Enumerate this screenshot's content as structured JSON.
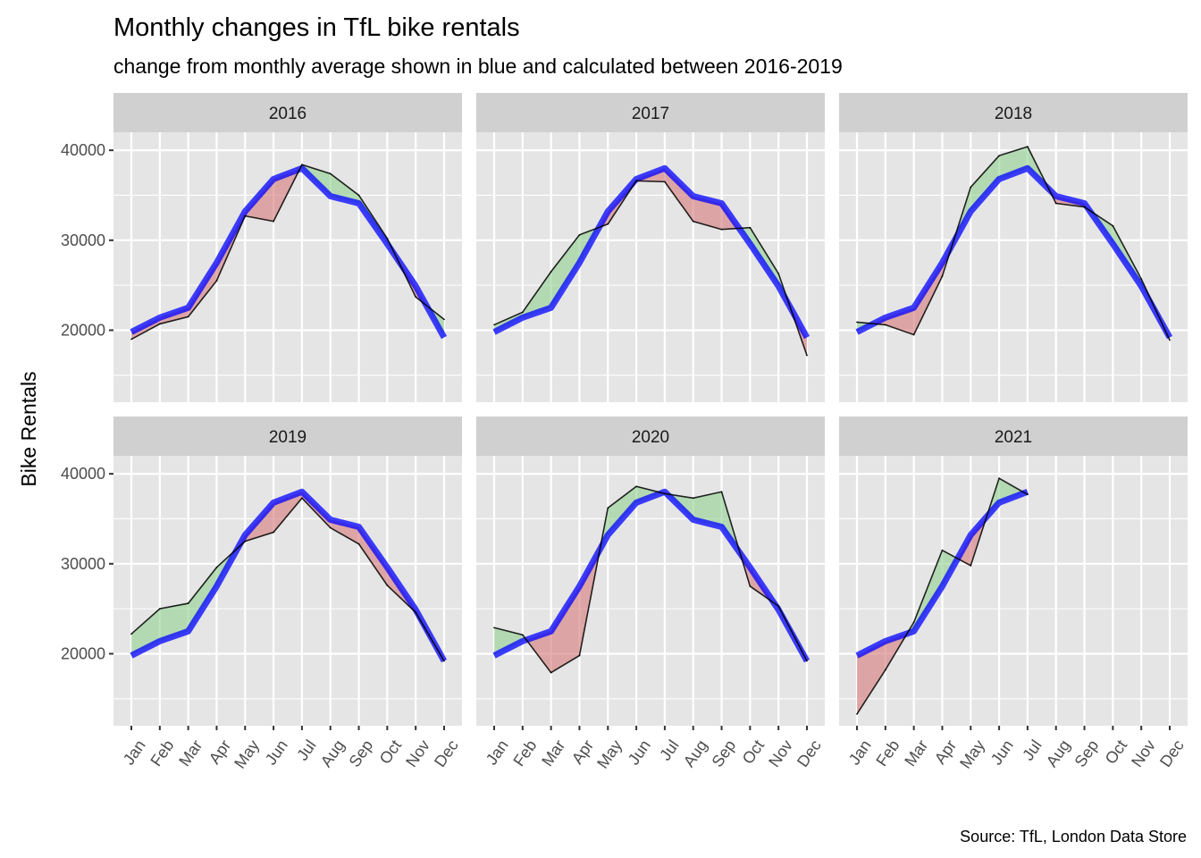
{
  "chart_data": {
    "type": "line",
    "title": "Monthly changes in TfL bike rentals",
    "subtitle": "change from monthly average shown in blue and calculated between 2016-2019",
    "caption": "Source: TfL, London Data Store",
    "xlabel": "",
    "ylabel": "Bike Rentals",
    "ylim": [
      12000,
      42000
    ],
    "yticks": [
      20000,
      30000,
      40000
    ],
    "y_tick_labels": [
      "20000",
      "30000",
      "40000"
    ],
    "categories": [
      "Jan",
      "Feb",
      "Mar",
      "Apr",
      "May",
      "Jun",
      "Jul",
      "Aug",
      "Sep",
      "Oct",
      "Nov",
      "Dec"
    ],
    "grid": true,
    "legend": "none",
    "colors": {
      "panel_bg": "#e5e5e5",
      "strip_bg": "#d0d0d0",
      "grid": "#ffffff",
      "expected_line": "#0000ff",
      "actual_line": "#000000",
      "above_fill": "#8fd18f",
      "below_fill": "#d67878"
    },
    "expected_monthly_average": {
      "name": "Monthly average 2016-2019",
      "values": [
        19800,
        21400,
        22500,
        27500,
        33200,
        36800,
        38000,
        34900,
        34100,
        29600,
        24900,
        19200
      ]
    },
    "facets": [
      {
        "label": "2016",
        "values": [
          19000,
          20700,
          21500,
          25500,
          32700,
          32100,
          38400,
          37400,
          35000,
          30200,
          23700,
          21200
        ]
      },
      {
        "label": "2017",
        "values": [
          20600,
          22000,
          26500,
          30600,
          31800,
          36600,
          36500,
          32100,
          31200,
          31400,
          26300,
          17200
        ]
      },
      {
        "label": "2018",
        "values": [
          20900,
          20600,
          19500,
          26000,
          35900,
          39400,
          40400,
          34100,
          33700,
          31600,
          25700,
          18900
        ]
      },
      {
        "label": "2019",
        "values": [
          22200,
          25000,
          25600,
          29600,
          32500,
          33500,
          37300,
          34000,
          32200,
          27600,
          24600,
          19200
        ]
      },
      {
        "label": "2020",
        "values": [
          22900,
          22100,
          17900,
          19800,
          36200,
          38600,
          37800,
          37300,
          38000,
          27500,
          25300,
          19200
        ]
      },
      {
        "label": "2021",
        "values": [
          13300,
          18200,
          23500,
          31500,
          29800,
          39500,
          37700
        ]
      }
    ]
  }
}
